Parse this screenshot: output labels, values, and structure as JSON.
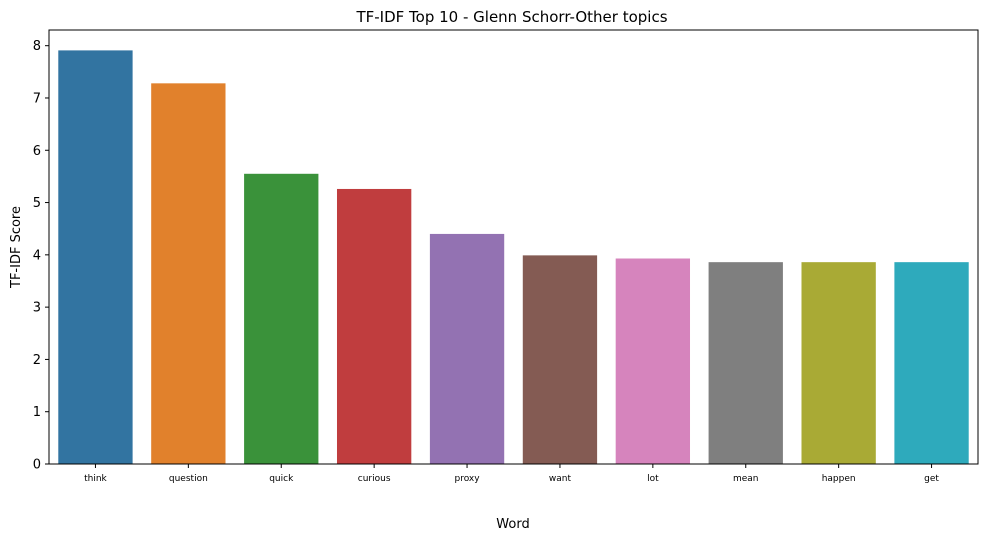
{
  "chart_data": {
    "type": "bar",
    "title": "TF-IDF Top 10 - Glenn Schorr-Other topics",
    "xlabel": "Word",
    "ylabel": "TF-IDF Score",
    "categories": [
      "think",
      "question",
      "quick",
      "curious",
      "proxy",
      "want",
      "lot",
      "mean",
      "happen",
      "get"
    ],
    "values": [
      7.91,
      7.28,
      5.55,
      5.26,
      4.4,
      3.99,
      3.93,
      3.86,
      3.86,
      3.86
    ],
    "colors": [
      "#3274a1",
      "#e1812c",
      "#3a923a",
      "#c03d3e",
      "#9372b2",
      "#845b53",
      "#d684bd",
      "#7f7f7f",
      "#a9aa35",
      "#2eaabc"
    ],
    "ylim": [
      0,
      8.3
    ],
    "yticks": [
      "0",
      "1",
      "2",
      "3",
      "4",
      "5",
      "6",
      "7",
      "8"
    ],
    "grid": false,
    "legend": "none"
  }
}
